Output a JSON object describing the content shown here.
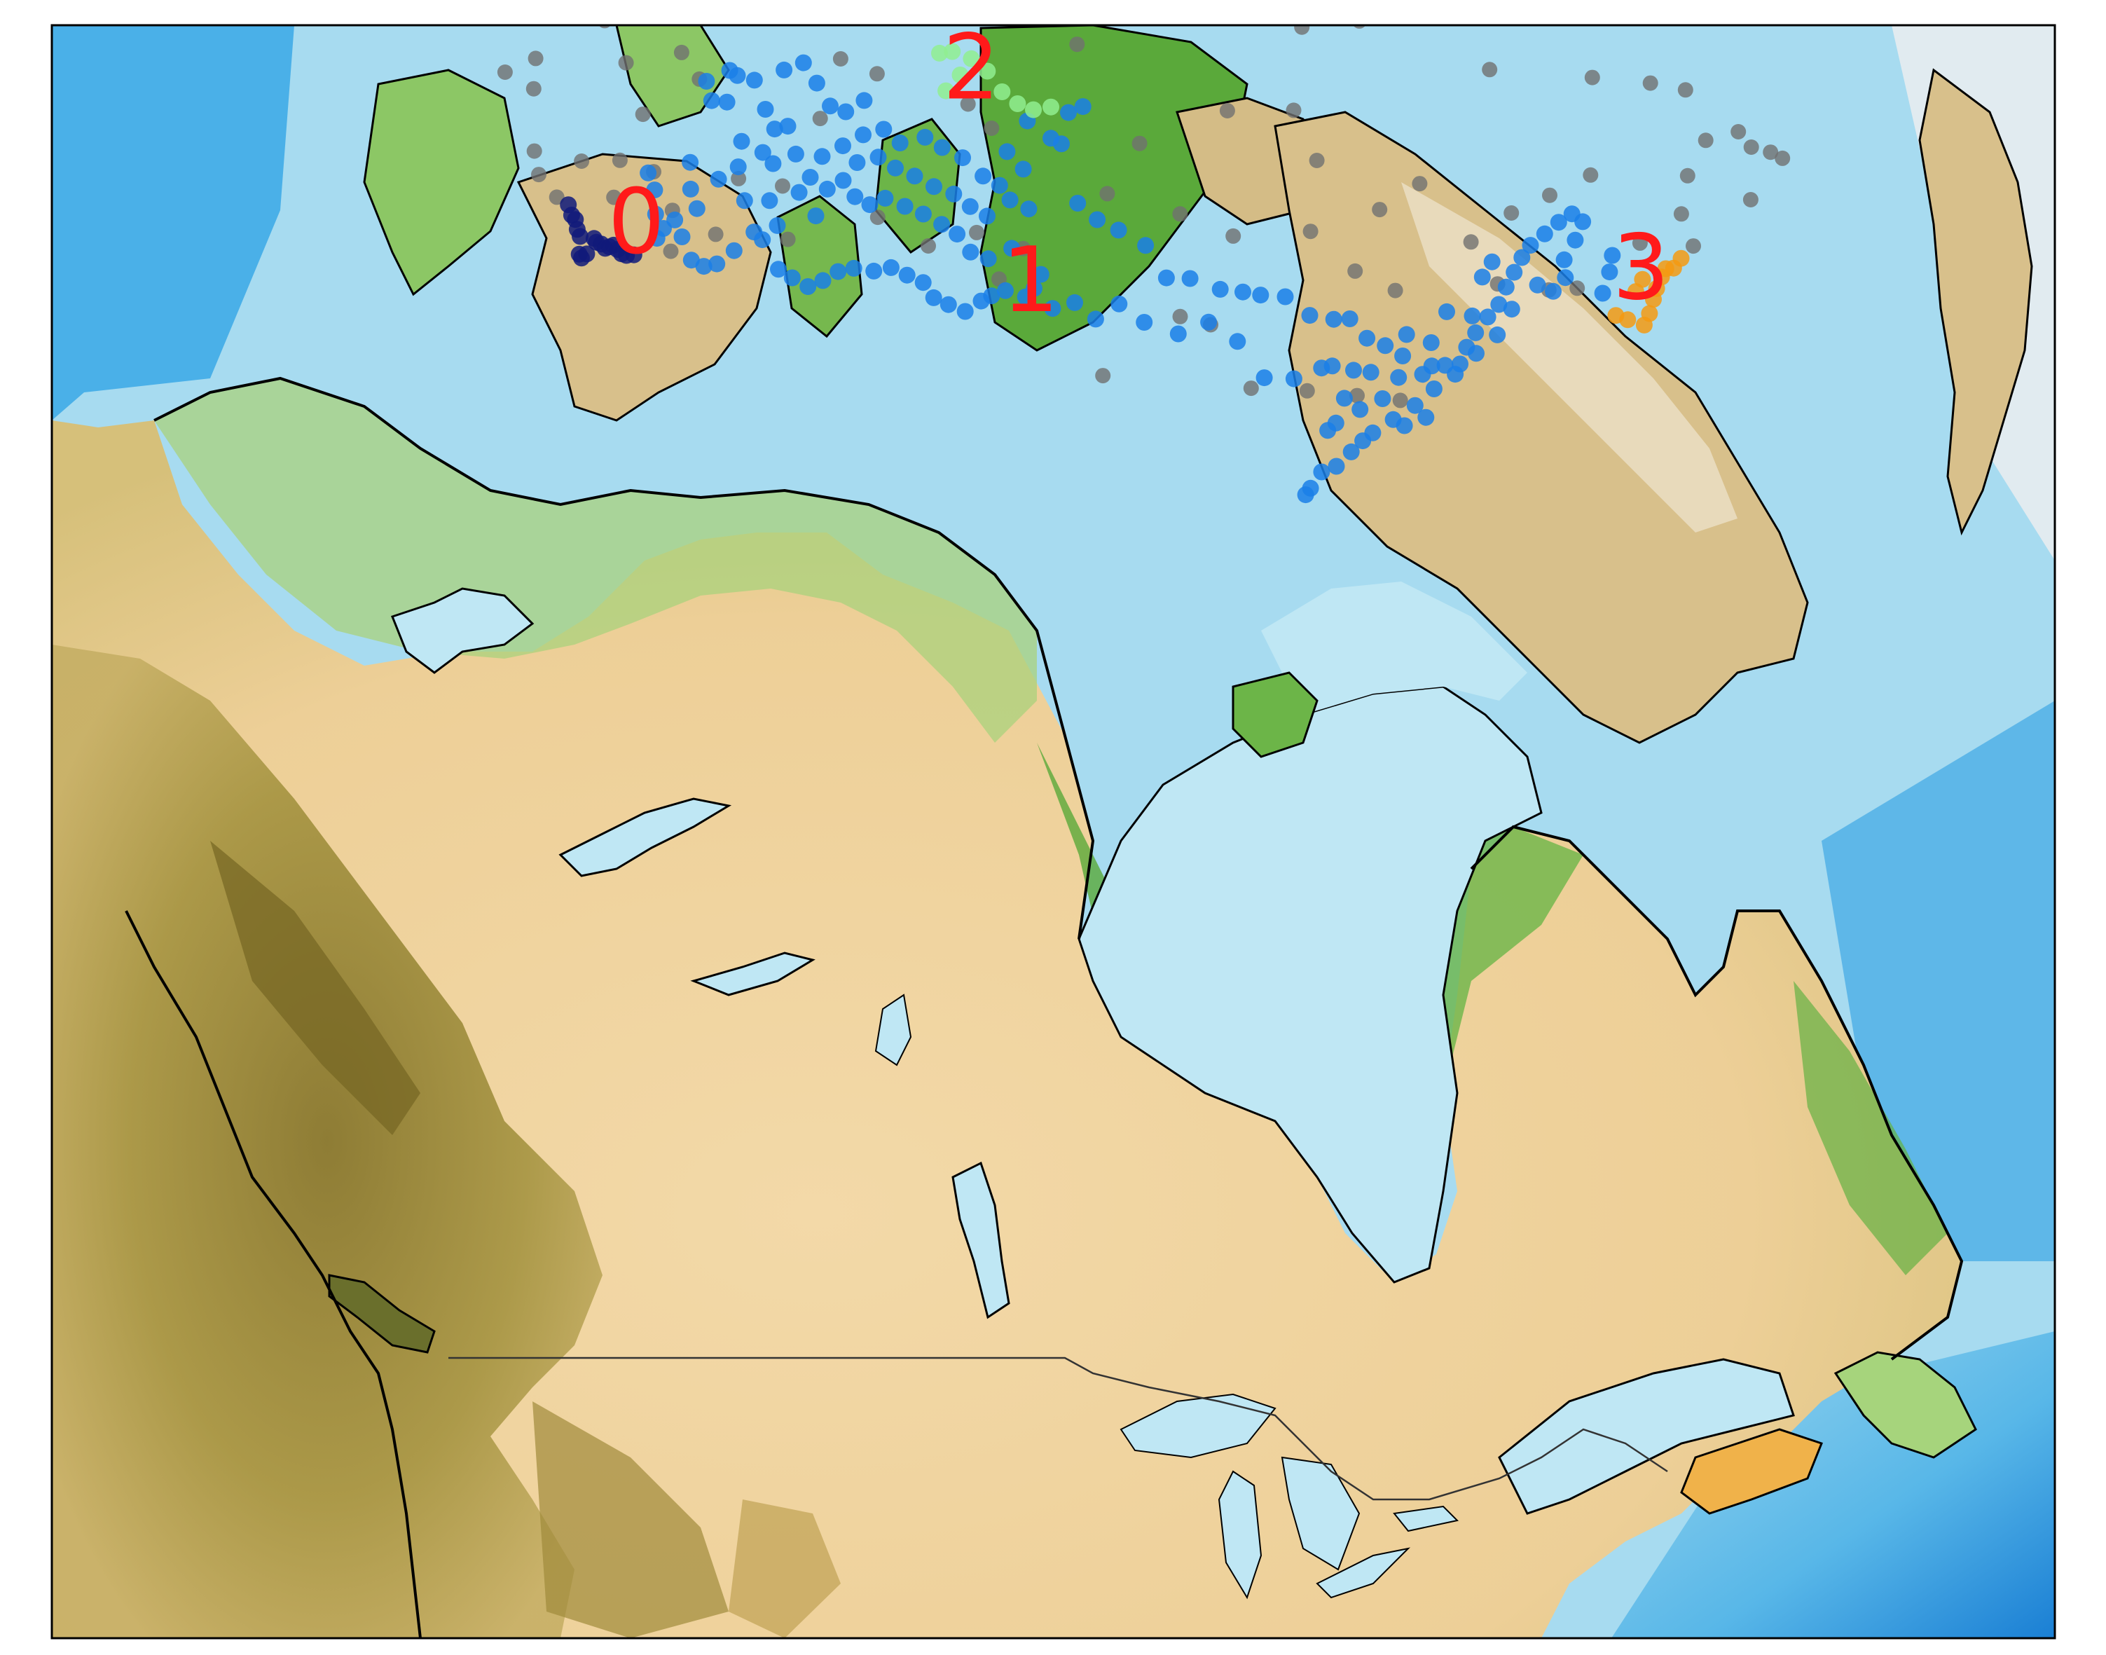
{
  "map": {
    "region": "Canada",
    "projection_style": "relief-shaded basemap with coastlines and lakes",
    "colors": {
      "deep_ocean": "#1f8fd8",
      "shelf_ocean": "#9fd8ef",
      "shallow_water": "#bfe7f4",
      "lowland": "#f1d6a4",
      "midland": "#d9c089",
      "mountain": "#8e7c2e",
      "tundra_green": "#56ac35",
      "light_green": "#a6d47c",
      "coast_line": "#000000",
      "border_line": "#222222"
    }
  },
  "legend_colors": {
    "cluster_0": "#101a7a",
    "cluster_1": "#1a7fe8",
    "cluster_2": "#90ee90",
    "cluster_3": "#f49a12",
    "noise": "#707070"
  },
  "cluster_labels": [
    {
      "id": "cluster-0",
      "text": "0",
      "lon": -120.5,
      "lat": 49.2
    },
    {
      "id": "cluster-1",
      "text": "1",
      "lon": -97.2,
      "lat": 49.4
    },
    {
      "id": "cluster-2",
      "text": "2",
      "lon": -101.5,
      "lat": 56.8
    },
    {
      "id": "cluster-3",
      "text": "3",
      "lon": -63.2,
      "lat": 45.5
    }
  ],
  "stations": {
    "cluster_0": [
      [
        -123.4,
        48.4
      ],
      [
        -123.2,
        48.6
      ],
      [
        -123.1,
        49.2
      ],
      [
        -122.9,
        49.1
      ],
      [
        -122.6,
        49.1
      ],
      [
        -122.3,
        49.0
      ],
      [
        -122.1,
        49.1
      ],
      [
        -121.9,
        49.2
      ],
      [
        -121.6,
        49.1
      ],
      [
        -121.3,
        49.0
      ],
      [
        -121.0,
        49.0
      ],
      [
        -120.6,
        49.1
      ],
      [
        -123.9,
        49.1
      ],
      [
        -124.2,
        49.3
      ],
      [
        -124.5,
        49.6
      ],
      [
        -123.6,
        48.5
      ],
      [
        -124.8,
        49.7
      ],
      [
        -125.2,
        50.0
      ]
    ],
    "cluster_1": [
      [
        -119.6,
        49.9
      ],
      [
        -119.4,
        50.3
      ],
      [
        -118.9,
        50.7
      ],
      [
        -118.2,
        50.2
      ],
      [
        -117.3,
        49.5
      ],
      [
        -116.5,
        49.4
      ],
      [
        -115.8,
        49.6
      ],
      [
        -115.0,
        50.2
      ],
      [
        -114.1,
        51.0
      ],
      [
        -113.6,
        52.2
      ],
      [
        -113.9,
        53.5
      ],
      [
        -114.7,
        53.8
      ],
      [
        -116.2,
        54.0
      ],
      [
        -117.8,
        55.2
      ],
      [
        -118.8,
        55.1
      ],
      [
        -119.5,
        55.7
      ],
      [
        -118.2,
        56.3
      ],
      [
        -117.6,
        56.2
      ],
      [
        -116.4,
        56.2
      ],
      [
        -115.2,
        55.3
      ],
      [
        -114.3,
        54.7
      ],
      [
        -113.5,
        54.9
      ],
      [
        -112.6,
        54.0
      ],
      [
        -111.4,
        53.3
      ],
      [
        -110.2,
        53.0
      ],
      [
        -110.6,
        52.0
      ],
      [
        -112.8,
        51.4
      ],
      [
        -113.5,
        50.8
      ],
      [
        -112.2,
        49.9
      ],
      [
        -111.3,
        49.7
      ],
      [
        -110.3,
        49.5
      ],
      [
        -109.5,
        49.8
      ],
      [
        -108.7,
        50.2
      ],
      [
        -107.8,
        50.4
      ],
      [
        -106.6,
        50.4
      ],
      [
        -105.6,
        50.6
      ],
      [
        -104.6,
        50.4
      ],
      [
        -103.6,
        50.2
      ],
      [
        -102.9,
        49.7
      ],
      [
        -102.0,
        49.5
      ],
      [
        -101.0,
        49.3
      ],
      [
        -100.1,
        49.7
      ],
      [
        -99.5,
        49.9
      ],
      [
        -98.7,
        50.1
      ],
      [
        -97.5,
        49.9
      ],
      [
        -97.0,
        50.2
      ],
      [
        -96.6,
        50.7
      ],
      [
        -98.4,
        51.6
      ],
      [
        -99.8,
        51.2
      ],
      [
        -100.9,
        51.4
      ],
      [
        -101.8,
        52.0
      ],
      [
        -102.8,
        52.3
      ],
      [
        -104.0,
        52.6
      ],
      [
        -105.2,
        52.8
      ],
      [
        -106.5,
        53.0
      ],
      [
        -107.4,
        52.7
      ],
      [
        -108.4,
        52.9
      ],
      [
        -109.3,
        53.4
      ],
      [
        -108.6,
        54.1
      ],
      [
        -107.3,
        54.4
      ],
      [
        -106.1,
        54.1
      ],
      [
        -104.8,
        53.9
      ],
      [
        -103.5,
        53.6
      ],
      [
        -102.2,
        53.4
      ],
      [
        -101.1,
        53.0
      ],
      [
        -100.0,
        52.7
      ],
      [
        -98.6,
        53.3
      ],
      [
        -97.4,
        53.0
      ],
      [
        -97.8,
        54.4
      ],
      [
        -98.9,
        55.0
      ],
      [
        -97.6,
        56.1
      ],
      [
        -95.3,
        55.3
      ],
      [
        -94.3,
        53.2
      ],
      [
        -93.1,
        52.6
      ],
      [
        -91.8,
        52.2
      ],
      [
        -90.2,
        51.6
      ],
      [
        -89.1,
        50.4
      ],
      [
        -87.7,
        50.3
      ],
      [
        -86.0,
        49.8
      ],
      [
        -84.7,
        49.6
      ],
      [
        -83.7,
        49.4
      ],
      [
        -82.3,
        49.2
      ],
      [
        -81.1,
        48.4
      ],
      [
        -79.8,
        48.1
      ],
      [
        -78.9,
        48.0
      ],
      [
        -78.2,
        47.2
      ],
      [
        -77.3,
        46.8
      ],
      [
        -76.5,
        46.3
      ],
      [
        -75.7,
        45.5
      ],
      [
        -75.1,
        45.7
      ],
      [
        -74.4,
        45.6
      ],
      [
        -73.6,
        45.5
      ],
      [
        -73.0,
        46.0
      ],
      [
        -72.3,
        46.4
      ],
      [
        -71.4,
        46.8
      ],
      [
        -70.6,
        47.1
      ],
      [
        -69.9,
        47.6
      ],
      [
        -69.2,
        48.0
      ],
      [
        -68.5,
        48.4
      ],
      [
        -67.8,
        48.7
      ],
      [
        -66.8,
        48.9
      ],
      [
        -65.8,
        49.1
      ],
      [
        -64.9,
        49.2
      ],
      [
        -64.5,
        48.8
      ],
      [
        -65.3,
        48.3
      ],
      [
        -66.3,
        47.8
      ],
      [
        -66.6,
        47.2
      ],
      [
        -67.5,
        46.9
      ],
      [
        -68.2,
        47.3
      ],
      [
        -70.0,
        46.8
      ],
      [
        -71.2,
        46.1
      ],
      [
        -72.6,
        45.7
      ],
      [
        -74.0,
        45.2
      ],
      [
        -75.3,
        44.9
      ],
      [
        -76.5,
        44.5
      ],
      [
        -77.8,
        44.2
      ],
      [
        -79.0,
        43.9
      ],
      [
        -79.6,
        43.7
      ],
      [
        -80.3,
        43.4
      ],
      [
        -81.2,
        43.0
      ],
      [
        -82.0,
        42.9
      ],
      [
        -82.7,
        42.4
      ],
      [
        -83.0,
        42.2
      ],
      [
        -80.8,
        44.5
      ],
      [
        -79.4,
        44.8
      ],
      [
        -78.1,
        45.0
      ],
      [
        -79.3,
        46.2
      ],
      [
        -80.4,
        46.5
      ],
      [
        -81.0,
        46.5
      ],
      [
        -82.6,
        46.3
      ],
      [
        -84.2,
        46.5
      ],
      [
        -85.4,
        47.9
      ],
      [
        -86.9,
        48.7
      ],
      [
        -88.7,
        48.4
      ],
      [
        -90.6,
        48.9
      ],
      [
        -92.0,
        49.6
      ],
      [
        -93.4,
        49.1
      ],
      [
        -94.6,
        49.7
      ],
      [
        -95.9,
        49.5
      ],
      [
        -117.0,
        52.5
      ],
      [
        -116.0,
        53.1
      ],
      [
        -115.1,
        52.0
      ],
      [
        -111.9,
        52.7
      ],
      [
        -110.9,
        54.1
      ],
      [
        -109.7,
        54.6
      ],
      [
        -108.5,
        55.1
      ],
      [
        -107.2,
        55.4
      ],
      [
        -106.0,
        55.0
      ],
      [
        -104.4,
        55.3
      ],
      [
        -103.2,
        55.0
      ],
      [
        -101.8,
        54.7
      ],
      [
        -100.4,
        54.1
      ],
      [
        -99.3,
        53.8
      ],
      [
        -96.0,
        55.5
      ],
      [
        -94.8,
        56.4
      ],
      [
        -93.8,
        56.6
      ],
      [
        -117.8,
        51.3
      ],
      [
        -118.5,
        51.9
      ],
      [
        -119.0,
        52.8
      ],
      [
        -120.1,
        50.7
      ],
      [
        -120.6,
        51.5
      ],
      [
        -121.3,
        52.0
      ],
      [
        -114.6,
        56.8
      ],
      [
        -113.4,
        57.2
      ],
      [
        -112.2,
        56.6
      ],
      [
        -111.0,
        55.9
      ],
      [
        -109.9,
        55.8
      ],
      [
        -108.8,
        56.3
      ],
      [
        -65.0,
        46.2
      ],
      [
        -64.2,
        46.8
      ],
      [
        -63.7,
        47.3
      ],
      [
        -74.8,
        46.5
      ],
      [
        -76.0,
        47.0
      ],
      [
        -73.5,
        47.4
      ],
      [
        -72.2,
        47.0
      ],
      [
        -71.0,
        48.2
      ],
      [
        -70.2,
        48.6
      ],
      [
        -77.0,
        45.6
      ],
      [
        -78.4,
        46.0
      ],
      [
        -81.3,
        44.3
      ],
      [
        -80.1,
        45.3
      ],
      [
        -76.1,
        44.0
      ],
      [
        -77.3,
        43.9
      ]
    ],
    "cluster_2": [
      [
        -104.0,
        58.3
      ],
      [
        -103.1,
        58.4
      ],
      [
        -101.7,
        58.2
      ],
      [
        -100.5,
        57.8
      ],
      [
        -99.4,
        57.1
      ],
      [
        -98.3,
        56.7
      ],
      [
        -97.2,
        56.5
      ],
      [
        -96.0,
        56.6
      ],
      [
        -102.4,
        57.6
      ],
      [
        -103.3,
        57.0
      ]
    ],
    "cluster_3": [
      [
        -63.6,
        44.6
      ],
      [
        -63.1,
        44.9
      ],
      [
        -62.6,
        45.3
      ],
      [
        -62.2,
        45.6
      ],
      [
        -61.7,
        45.9
      ],
      [
        -61.3,
        46.1
      ],
      [
        -64.3,
        45.0
      ],
      [
        -64.8,
        45.3
      ],
      [
        -63.3,
        45.8
      ],
      [
        -62.7,
        46.1
      ],
      [
        -60.9,
        46.0
      ],
      [
        -60.3,
        46.2
      ]
    ],
    "noise": [
      [
        -135.0,
        68.0
      ],
      [
        -134.5,
        67.3
      ],
      [
        -136.3,
        65.0
      ],
      [
        -133.8,
        64.0
      ],
      [
        -139.4,
        64.1
      ],
      [
        -141.0,
        62.6
      ],
      [
        -138.0,
        61.3
      ],
      [
        -135.1,
        60.7
      ],
      [
        -131.5,
        60.2
      ],
      [
        -129.0,
        59.5
      ],
      [
        -126.3,
        58.8
      ],
      [
        -123.5,
        58.7
      ],
      [
        -120.7,
        58.5
      ],
      [
        -127.4,
        56.5
      ],
      [
        -125.0,
        55.4
      ],
      [
        -122.8,
        53.9
      ],
      [
        -120.0,
        55.7
      ],
      [
        -118.5,
        58.3
      ],
      [
        -115.4,
        60.8
      ],
      [
        -114.4,
        62.5
      ],
      [
        -111.9,
        60.0
      ],
      [
        -110.8,
        61.5
      ],
      [
        -106.1,
        61.0
      ],
      [
        -100.1,
        62.4
      ],
      [
        -96.0,
        64.3
      ],
      [
        -94.0,
        61.2
      ],
      [
        -90.6,
        63.3
      ],
      [
        -86.5,
        66.0
      ],
      [
        -81.2,
        64.2
      ],
      [
        -77.6,
        62.4
      ],
      [
        -69.5,
        62.8
      ],
      [
        -68.5,
        63.7
      ],
      [
        -65.8,
        66.1
      ],
      [
        -64.1,
        67.5
      ],
      [
        -62.4,
        66.6
      ],
      [
        -83.0,
        70.1
      ],
      [
        -86.4,
        68.5
      ],
      [
        -90.7,
        68.6
      ],
      [
        -94.5,
        68.6
      ],
      [
        -105.1,
        69.1
      ],
      [
        -110.6,
        68.8
      ],
      [
        -115.3,
        67.8
      ],
      [
        -123.2,
        65.3
      ],
      [
        -126.8,
        65.3
      ],
      [
        -129.5,
        69.4
      ],
      [
        -133.0,
        69.4
      ],
      [
        -117.5,
        70.7
      ],
      [
        -114.9,
        72.5
      ],
      [
        -105.5,
        72.7
      ],
      [
        -95.0,
        74.7
      ],
      [
        -85.2,
        73.0
      ],
      [
        -80.3,
        73.6
      ],
      [
        -75.6,
        78.6
      ],
      [
        -69.6,
        77.5
      ],
      [
        -64.5,
        82.0
      ],
      [
        -97.5,
        79.9
      ],
      [
        -119.2,
        76.3
      ],
      [
        -123.4,
        71.9
      ],
      [
        -88.0,
        69.1
      ],
      [
        -97.7,
        60.2
      ],
      [
        -94.1,
        58.8
      ],
      [
        -84.0,
        56.0
      ],
      [
        -80.1,
        51.3
      ],
      [
        -78.8,
        53.7
      ],
      [
        -77.8,
        58.4
      ],
      [
        -73.7,
        58.1
      ],
      [
        -68.4,
        58.1
      ],
      [
        -66.3,
        55.0
      ],
      [
        -61.8,
        56.6
      ],
      [
        -60.4,
        53.3
      ],
      [
        -57.3,
        52.2
      ],
      [
        -55.6,
        51.4
      ],
      [
        -53.1,
        48.0
      ],
      [
        -54.1,
        49.2
      ],
      [
        -56.0,
        49.5
      ],
      [
        -57.9,
        48.7
      ],
      [
        -59.2,
        47.6
      ],
      [
        -52.7,
        47.6
      ],
      [
        -55.4,
        46.9
      ],
      [
        -53.9,
        48.5
      ],
      [
        -65.7,
        50.1
      ],
      [
        -63.0,
        50.2
      ],
      [
        -68.2,
        50.0
      ],
      [
        -71.0,
        49.5
      ],
      [
        -72.9,
        52.0
      ],
      [
        -75.7,
        51.5
      ],
      [
        -76.0,
        48.6
      ],
      [
        -78.0,
        49.6
      ],
      [
        -84.8,
        51.6
      ],
      [
        -87.9,
        52.6
      ],
      [
        -90.1,
        55.2
      ],
      [
        -92.4,
        53.5
      ],
      [
        -97.7,
        51.6
      ],
      [
        -100.0,
        55.8
      ],
      [
        -101.7,
        56.6
      ],
      [
        -108.2,
        57.3
      ],
      [
        -110.9,
        57.6
      ],
      [
        -115.5,
        58.6
      ],
      [
        -118.0,
        59.0
      ],
      [
        -122.5,
        59.2
      ],
      [
        -124.7,
        61.3
      ],
      [
        -128.8,
        62.1
      ],
      [
        -125.5,
        57.4
      ],
      [
        -121.7,
        56.4
      ],
      [
        -123.2,
        52.1
      ],
      [
        -125.4,
        51.6
      ],
      [
        -127.5,
        50.6
      ],
      [
        -128.3,
        51.3
      ],
      [
        -129.9,
        53.3
      ],
      [
        -130.6,
        54.3
      ],
      [
        -132.0,
        53.4
      ],
      [
        -126.0,
        50.1
      ],
      [
        -122.8,
        50.8
      ],
      [
        -121.0,
        52.1
      ],
      [
        -119.2,
        51.0
      ],
      [
        -118.6,
        49.6
      ],
      [
        -116.3,
        50.6
      ],
      [
        -112.0,
        51.0
      ],
      [
        -106.8,
        52.3
      ],
      [
        -103.5,
        51.5
      ],
      [
        -100.6,
        52.1
      ],
      [
        -99.1,
        50.5
      ],
      [
        -88.5,
        49.0
      ],
      [
        -86.8,
        48.6
      ],
      [
        -85.0,
        46.2
      ],
      [
        -82.0,
        45.8
      ],
      [
        -79.4,
        45.3
      ],
      [
        -77.2,
        44.8
      ],
      [
        -70.3,
        47.8
      ],
      [
        -67.7,
        47.0
      ],
      [
        -66.2,
        46.7
      ],
      [
        -62.0,
        47.3
      ],
      [
        -59.4,
        46.4
      ],
      [
        -111.5,
        55.4
      ],
      [
        -113.0,
        52.8
      ],
      [
        -115.8,
        52.7
      ],
      [
        -72.1,
        59.9
      ],
      [
        -70.4,
        61.1
      ],
      [
        -79.6,
        55.6
      ],
      [
        -93.1,
        47.1
      ]
    ]
  }
}
